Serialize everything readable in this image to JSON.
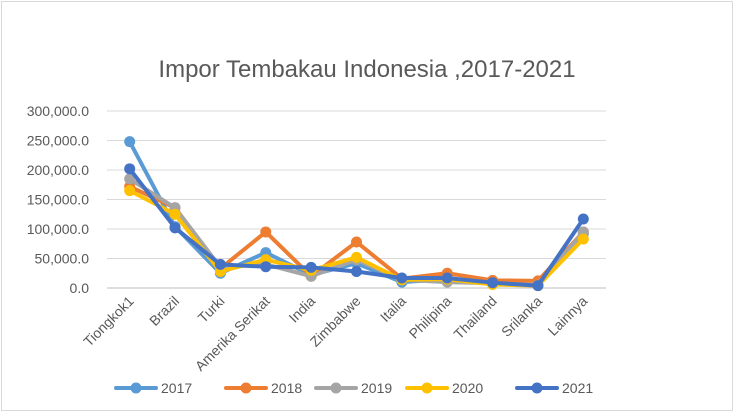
{
  "chart_data": {
    "type": "line",
    "title": "Impor Tembakau Indonesia ,2017-2021",
    "categories": [
      "Tiongkok1",
      "Brazil",
      "Turki",
      "Amerika Serikat",
      "India",
      "Zimbabwe",
      "Italia",
      "Philipina",
      "Thailand",
      "Srilanka",
      "Lainnya"
    ],
    "yticks": [
      "0.0",
      "50,000.0",
      "100,000.0",
      "150,000.0",
      "200,000.0",
      "250,000.0",
      "300,000.0"
    ],
    "ylim": [
      0,
      300000
    ],
    "grid": true,
    "legend_position": "bottom",
    "series": [
      {
        "name": "2017",
        "color": "#5b9bd5",
        "values": [
          248000,
          104000,
          25000,
          60000,
          22000,
          42000,
          10000,
          15000,
          8000,
          4000,
          92000
        ]
      },
      {
        "name": "2018",
        "color": "#ed7d31",
        "values": [
          172000,
          136000,
          33000,
          95000,
          20000,
          78000,
          16000,
          25000,
          13000,
          12000,
          95000
        ]
      },
      {
        "name": "2019",
        "color": "#a5a5a5",
        "values": [
          185000,
          136000,
          35000,
          40000,
          20000,
          48000,
          14000,
          10000,
          8000,
          5000,
          95000
        ]
      },
      {
        "name": "2020",
        "color": "#ffc000",
        "values": [
          165000,
          125000,
          28000,
          48000,
          30000,
          52000,
          14000,
          15000,
          6000,
          4000,
          83000
        ]
      },
      {
        "name": "2021",
        "color": "#4472c4",
        "values": [
          202000,
          102000,
          40000,
          36000,
          35000,
          28000,
          17000,
          17000,
          9000,
          4000,
          117000
        ]
      }
    ]
  }
}
